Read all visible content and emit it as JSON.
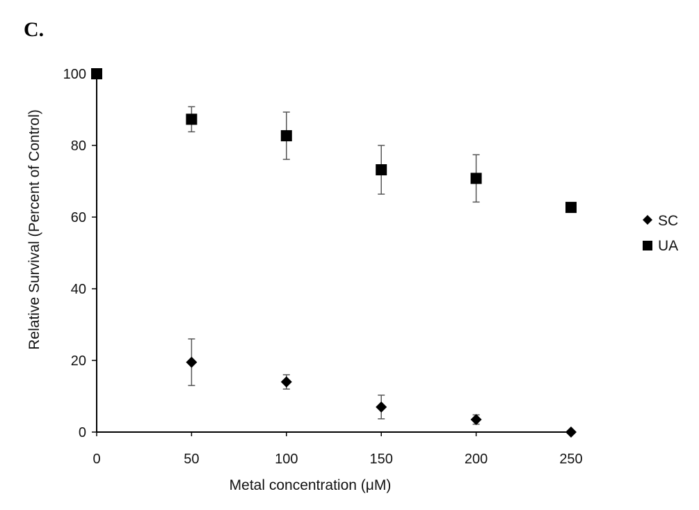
{
  "panel_label": "C.",
  "chart_data": {
    "type": "scatter",
    "xlabel": "Metal concentration (μM)",
    "ylabel": "Relative Survival (Percent of Control)",
    "xlim": [
      0,
      250
    ],
    "ylim": [
      0,
      100
    ],
    "xticks": [
      0,
      50,
      100,
      150,
      200,
      250
    ],
    "yticks": [
      0,
      20,
      40,
      60,
      80,
      100
    ],
    "grid": false,
    "legend_position": "right",
    "series": [
      {
        "name": "SC",
        "marker": "diamond",
        "color": "#000000",
        "x": [
          0,
          50,
          100,
          150,
          200,
          250
        ],
        "y": [
          100,
          19.5,
          14,
          7,
          3.5,
          0
        ],
        "error": [
          0,
          6.5,
          2,
          3.3,
          1.3,
          0
        ]
      },
      {
        "name": "UA",
        "marker": "square",
        "color": "#000000",
        "x": [
          0,
          50,
          100,
          150,
          200,
          250
        ],
        "y": [
          100,
          87.3,
          82.7,
          73.2,
          70.8,
          62.7
        ],
        "error": [
          0,
          3.5,
          6.6,
          6.8,
          6.6,
          1.2
        ]
      }
    ]
  }
}
